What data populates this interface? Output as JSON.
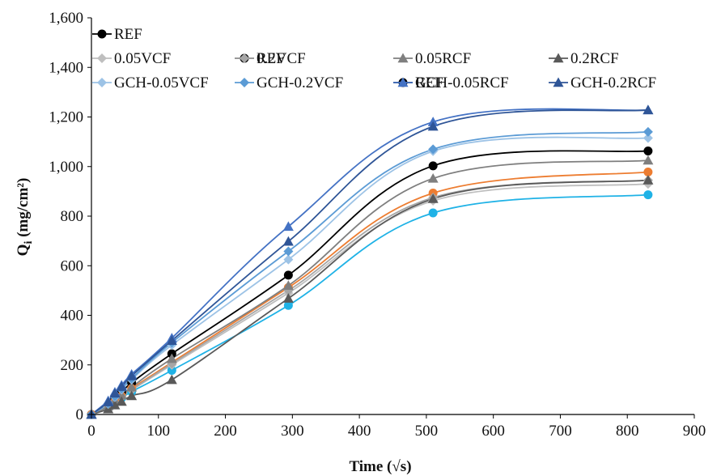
{
  "chart_data": {
    "type": "line",
    "title": "",
    "xlabel": "Time (√s)",
    "ylabel_main": "Q",
    "ylabel_sub": "i",
    "ylabel_rest": " (mg/cm²)",
    "xlim": [
      0,
      900
    ],
    "ylim": [
      0,
      1600
    ],
    "xticks": [
      0,
      100,
      200,
      300,
      400,
      500,
      600,
      700,
      800,
      900
    ],
    "yticks": [
      0,
      200,
      400,
      600,
      800,
      1000,
      1200,
      1400,
      1600
    ],
    "xtick_labels": [
      "0",
      "100",
      "200",
      "300",
      "400",
      "500",
      "600",
      "700",
      "800",
      "900"
    ],
    "ytick_labels": [
      "0",
      "200",
      "400",
      "600",
      "800",
      "1,000",
      "1,200",
      "1,400",
      "1,600"
    ],
    "grid": false,
    "legend_position": "top",
    "x": [
      0,
      25,
      35,
      45,
      60,
      120,
      294,
      510,
      831
    ],
    "series": [
      {
        "name": "REF",
        "color": "#000000",
        "marker": "circle",
        "values": [
          0,
          38,
          62,
          88,
          128,
          245,
          562,
          1003,
          1063
        ]
      },
      {
        "name": "GCH",
        "color": "#1fb2e6",
        "marker": "circle",
        "values": [
          0,
          28,
          46,
          66,
          92,
          178,
          440,
          813,
          886
        ]
      },
      {
        "name": "GNP",
        "color": "#ed7d31",
        "marker": "circle",
        "values": [
          0,
          32,
          52,
          74,
          105,
          210,
          512,
          893,
          978
        ]
      },
      {
        "name": "0.05VCF",
        "color": "#bfbfbf",
        "marker": "diamond",
        "values": [
          0,
          30,
          49,
          70,
          98,
          200,
          490,
          862,
          930
        ]
      },
      {
        "name": "0.2VCF",
        "color": "#a6a6a6",
        "marker": "diamond",
        "values": [
          0,
          31,
          50,
          72,
          100,
          205,
          500,
          875,
          945
        ]
      },
      {
        "name": "0.05RCF",
        "color": "#7f7f7f",
        "marker": "triangle",
        "values": [
          0,
          34,
          55,
          78,
          110,
          225,
          520,
          952,
          1025
        ]
      },
      {
        "name": "0.2RCF",
        "color": "#595959",
        "marker": "triangle",
        "values": [
          0,
          22,
          38,
          52,
          75,
          140,
          468,
          870,
          945
        ]
      },
      {
        "name": "GCH-0.05VCF",
        "color": "#9dc3e6",
        "marker": "diamond",
        "values": [
          0,
          42,
          70,
          100,
          140,
          280,
          625,
          1062,
          1115
        ]
      },
      {
        "name": "GCH-0.2VCF",
        "color": "#5b9bd5",
        "marker": "diamond",
        "values": [
          0,
          44,
          73,
          104,
          145,
          290,
          658,
          1070,
          1140
        ]
      },
      {
        "name": "GCH-0.05RCF",
        "color": "#4472c4",
        "marker": "triangle",
        "values": [
          0,
          55,
          90,
          118,
          162,
          308,
          758,
          1180,
          1228
        ]
      },
      {
        "name": "GCH-0.2RCF",
        "color": "#2f5597",
        "marker": "triangle",
        "values": [
          0,
          50,
          85,
          112,
          155,
          298,
          698,
          1162,
          1228
        ]
      }
    ]
  }
}
